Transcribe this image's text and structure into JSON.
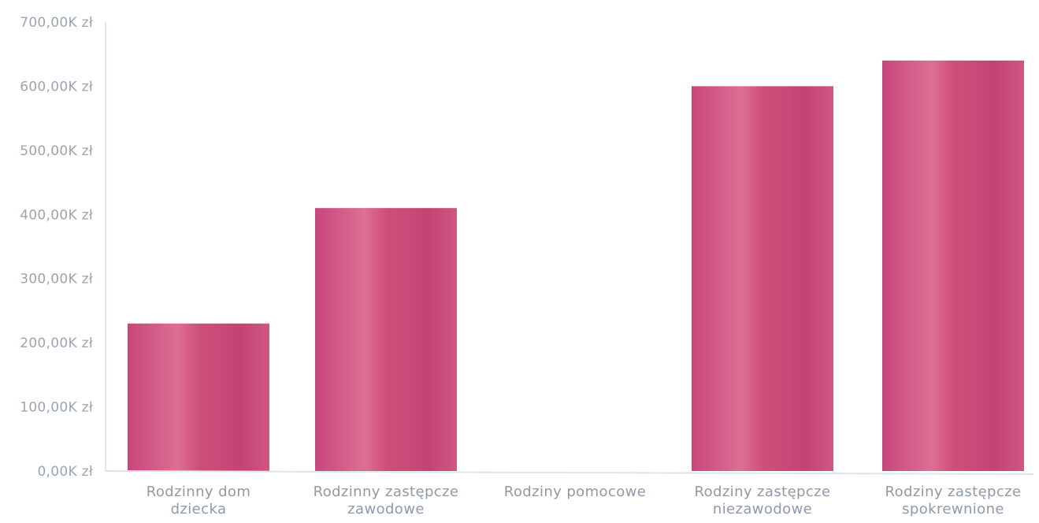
{
  "chart_data": {
    "type": "bar",
    "title": "",
    "xlabel": "",
    "ylabel": "",
    "ylim": [
      0,
      700
    ],
    "y_unit": "K zł",
    "y_ticks": [
      "0,00K zł",
      "100,00K zł",
      "200,00K zł",
      "300,00K zł",
      "400,00K zł",
      "500,00K zł",
      "600,00K zł",
      "700,00K zł"
    ],
    "y_tick_values": [
      0,
      100,
      200,
      300,
      400,
      500,
      600,
      700
    ],
    "categories": [
      [
        "Rodzinny dom",
        "dziecka"
      ],
      [
        "Rodzinny zastępcze",
        "zawodowe"
      ],
      [
        "Rodziny pomocowe"
      ],
      [
        "Rodziny zastępcze",
        "niezawodowe"
      ],
      [
        "Rodziny zastępcze",
        "spokrewnione"
      ]
    ],
    "values": [
      230,
      410,
      0,
      600,
      640
    ],
    "bar_color": "#cf4f7b",
    "grid": false,
    "legend": "none"
  }
}
